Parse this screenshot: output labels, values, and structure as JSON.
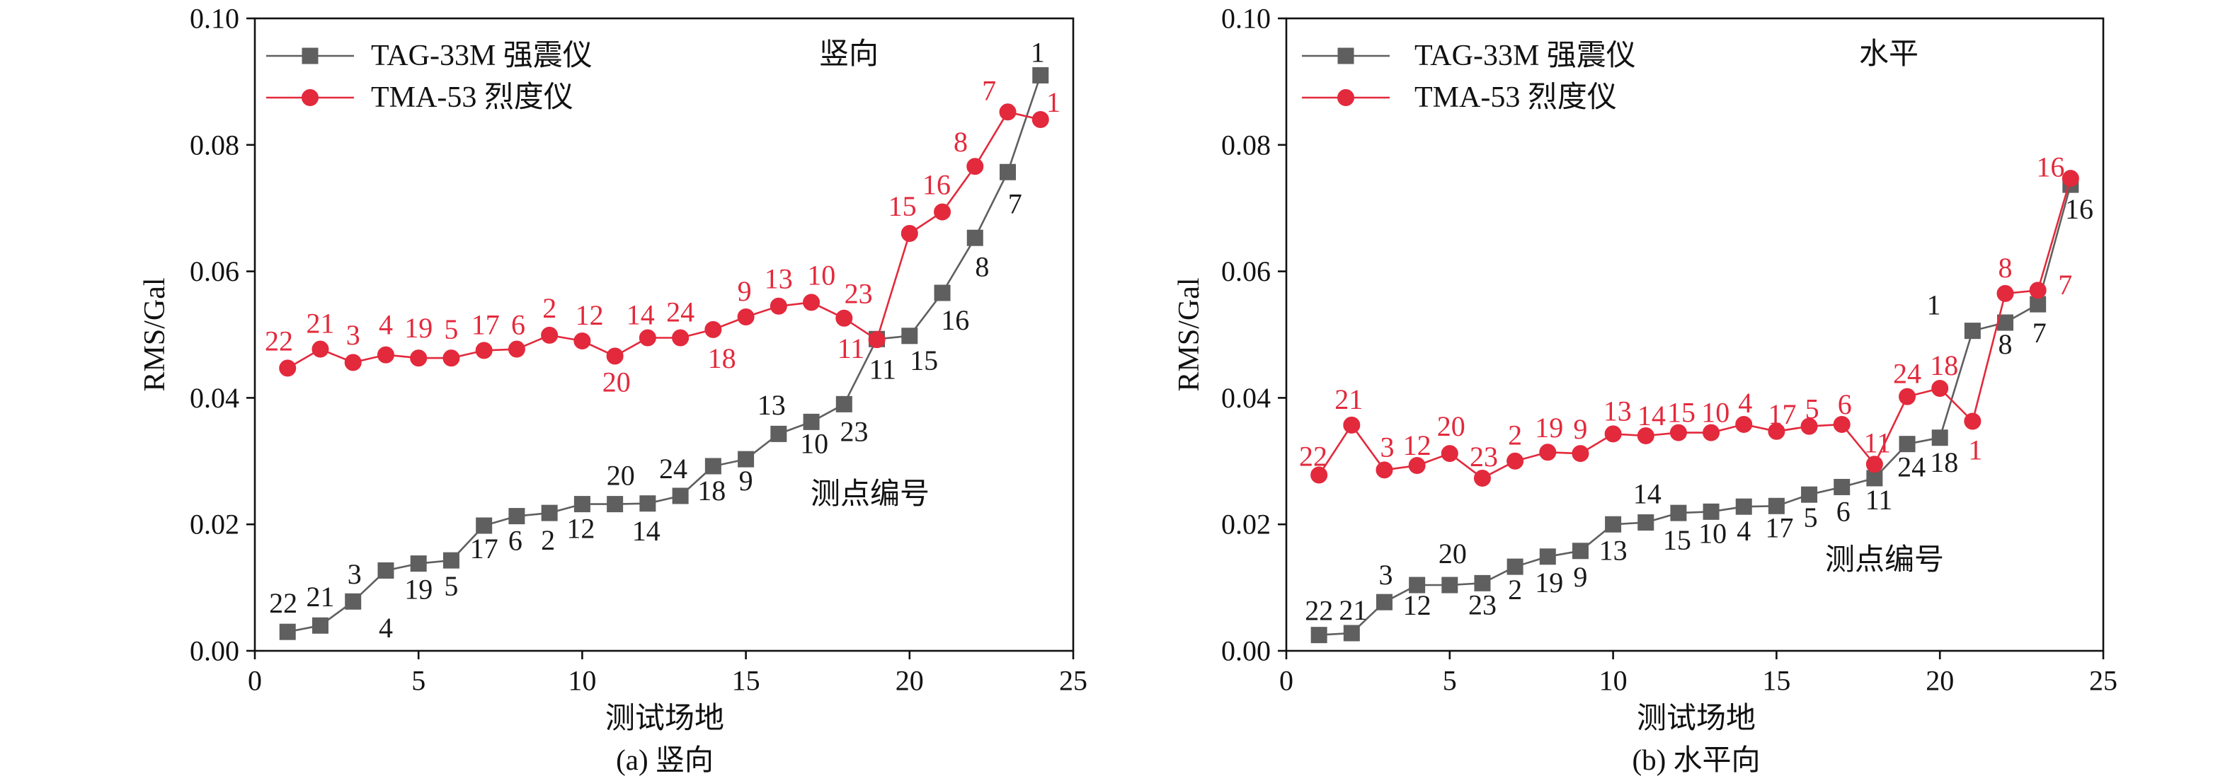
{
  "chart_data": [
    {
      "type": "line",
      "caption": "(a) 竖向",
      "annotations": [
        "竖向",
        "测点编号"
      ],
      "xlabel": "测试场地",
      "ylabel": "RMS/Gal",
      "xlim": [
        0,
        25
      ],
      "ylim": [
        0,
        0.1
      ],
      "xticks": [
        "0",
        "5",
        "10",
        "15",
        "20",
        "25"
      ],
      "yticks": [
        "0.00",
        "0.02",
        "0.04",
        "0.06",
        "0.08",
        "0.10"
      ],
      "grid": false,
      "legend": "top-left",
      "x": [
        1,
        2,
        3,
        4,
        5,
        6,
        7,
        8,
        9,
        10,
        11,
        12,
        13,
        14,
        15,
        16,
        17,
        18,
        19,
        20,
        21,
        22,
        23,
        24
      ],
      "series": [
        {
          "name": "TAG-33M 强震仪",
          "color": "#5f5f5f",
          "label_color": "#1a1a1a",
          "marker": "square",
          "values": [
            0.003,
            0.004,
            0.0078,
            0.0127,
            0.0138,
            0.0143,
            0.0198,
            0.0213,
            0.0218,
            0.0232,
            0.0232,
            0.0233,
            0.0245,
            0.0292,
            0.0303,
            0.0343,
            0.0362,
            0.039,
            0.0493,
            0.0498,
            0.0566,
            0.0653,
            0.0757,
            0.091
          ],
          "point_labels": [
            "22",
            "21",
            "3",
            "4",
            "19",
            "5",
            "17",
            "6",
            "2",
            "12",
            "20",
            "14",
            "24",
            "18",
            "9",
            "13",
            "10",
            "23",
            "11",
            "15",
            "16",
            "8",
            "7",
            "1"
          ]
        },
        {
          "name": "TMA-53 烈度仪",
          "color": "#e3293c",
          "label_color": "#e3293c",
          "marker": "circle",
          "values": [
            0.0447,
            0.0477,
            0.0456,
            0.0468,
            0.0463,
            0.0463,
            0.0475,
            0.0477,
            0.0499,
            0.049,
            0.0466,
            0.0495,
            0.0495,
            0.0508,
            0.0528,
            0.0545,
            0.0551,
            0.0526,
            0.0492,
            0.066,
            0.0694,
            0.0766,
            0.0852,
            0.084
          ],
          "point_labels": [
            "22",
            "21",
            "3",
            "4",
            "19",
            "5",
            "17",
            "6",
            "2",
            "12",
            "20",
            "14",
            "24",
            "18",
            "9",
            "13",
            "10",
            "23",
            "11",
            "15",
            "16",
            "8",
            "7",
            "1"
          ]
        }
      ]
    },
    {
      "type": "line",
      "caption": "(b) 水平向",
      "annotations": [
        "水平",
        "测点编号"
      ],
      "xlabel": "测试场地",
      "ylabel": "RMS/Gal",
      "xlim": [
        0,
        25
      ],
      "ylim": [
        0,
        0.1
      ],
      "xticks": [
        "0",
        "5",
        "10",
        "15",
        "20",
        "25"
      ],
      "yticks": [
        "0.00",
        "0.02",
        "0.04",
        "0.06",
        "0.08",
        "0.10"
      ],
      "grid": false,
      "legend": "top-left",
      "x": [
        1,
        2,
        3,
        4,
        5,
        6,
        7,
        8,
        9,
        10,
        11,
        12,
        13,
        14,
        15,
        16,
        17,
        18,
        19,
        20,
        21,
        22,
        23,
        24
      ],
      "series": [
        {
          "name": "TAG-33M 强震仪",
          "color": "#5f5f5f",
          "label_color": "#1a1a1a",
          "marker": "square",
          "values": [
            0.0025,
            0.0028,
            0.0077,
            0.0104,
            0.0104,
            0.0107,
            0.0133,
            0.0149,
            0.0158,
            0.02,
            0.0203,
            0.0218,
            0.022,
            0.0228,
            0.0229,
            0.0247,
            0.0259,
            0.0273,
            0.0327,
            0.0337,
            0.0506,
            0.0519,
            0.0548,
            0.0737
          ],
          "point_labels": [
            "22",
            "21",
            "3",
            "12",
            "20",
            "23",
            "2",
            "19",
            "9",
            "13",
            "14",
            "15",
            "10",
            "4",
            "17",
            "5",
            "6",
            "11",
            "24",
            "18",
            "1",
            "8",
            "7",
            "16"
          ]
        },
        {
          "name": "TMA-53 烈度仪",
          "color": "#e3293c",
          "label_color": "#e3293c",
          "marker": "circle",
          "values": [
            0.0278,
            0.0357,
            0.0286,
            0.0293,
            0.0312,
            0.0273,
            0.03,
            0.0314,
            0.0312,
            0.0343,
            0.034,
            0.0345,
            0.0345,
            0.0358,
            0.0347,
            0.0355,
            0.0358,
            0.0295,
            0.0402,
            0.0415,
            0.0363,
            0.0565,
            0.057,
            0.0747
          ],
          "point_labels": [
            "22",
            "21",
            "3",
            "12",
            "20",
            "23",
            "2",
            "19",
            "9",
            "13",
            "14",
            "15",
            "10",
            "4",
            "17",
            "5",
            "6",
            "11",
            "24",
            "18",
            "1",
            "8",
            "7",
            "16"
          ]
        }
      ]
    }
  ]
}
